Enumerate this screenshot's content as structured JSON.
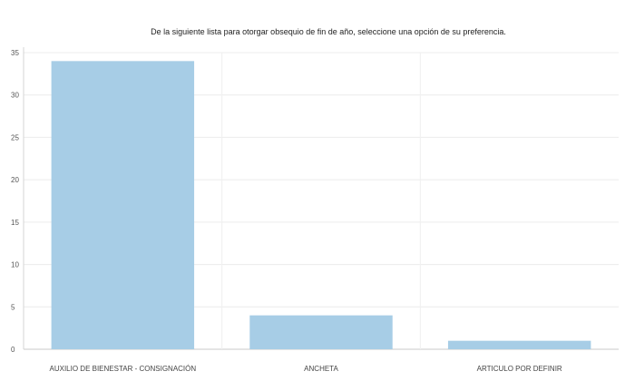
{
  "chart_data": {
    "type": "bar",
    "title": "De la siguiente lista para otorgar obsequio de fin de año, seleccione una opción de su preferencia.",
    "categories": [
      "AUXILIO DE BIENESTAR - CONSIGNACIÓN",
      "ANCHETA",
      "ARTICULO POR DEFINIR"
    ],
    "values": [
      34,
      4,
      1
    ],
    "ylim": [
      0,
      35
    ],
    "yticks": [
      0,
      5,
      10,
      15,
      20,
      25,
      30,
      35
    ],
    "grid": true,
    "bar_color": "#a7cde6"
  }
}
